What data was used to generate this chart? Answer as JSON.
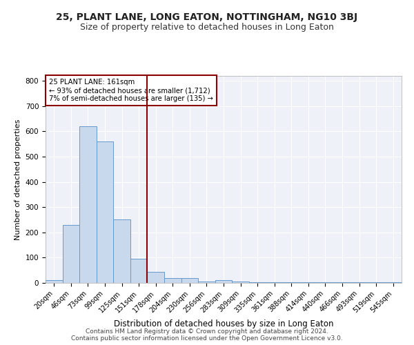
{
  "title": "25, PLANT LANE, LONG EATON, NOTTINGHAM, NG10 3BJ",
  "subtitle": "Size of property relative to detached houses in Long Eaton",
  "xlabel": "Distribution of detached houses by size in Long Eaton",
  "ylabel": "Number of detached properties",
  "footer_line1": "Contains HM Land Registry data © Crown copyright and database right 2024.",
  "footer_line2": "Contains public sector information licensed under the Open Government Licence v3.0.",
  "bin_labels": [
    "20sqm",
    "46sqm",
    "73sqm",
    "99sqm",
    "125sqm",
    "151sqm",
    "178sqm",
    "204sqm",
    "230sqm",
    "256sqm",
    "283sqm",
    "309sqm",
    "335sqm",
    "361sqm",
    "388sqm",
    "414sqm",
    "440sqm",
    "466sqm",
    "493sqm",
    "519sqm",
    "545sqm"
  ],
  "bar_values": [
    10,
    230,
    620,
    560,
    252,
    95,
    45,
    20,
    20,
    5,
    10,
    5,
    2,
    2,
    2,
    2,
    2,
    2,
    2,
    2,
    2
  ],
  "bar_color": "#c8d9ee",
  "bar_edge_color": "#6699cc",
  "vline_x": 5.5,
  "vline_color": "#8b0000",
  "annotation_text": "25 PLANT LANE: 161sqm\n← 93% of detached houses are smaller (1,712)\n7% of semi-detached houses are larger (135) →",
  "annotation_box_color": "#8b0000",
  "ylim": [
    0,
    820
  ],
  "yticks": [
    0,
    100,
    200,
    300,
    400,
    500,
    600,
    700,
    800
  ],
  "background_color": "#eef2f8",
  "plot_bg_color": "#eef2f8",
  "grid_color": "#ffffff",
  "title_fontsize": 10,
  "subtitle_fontsize": 9,
  "xlabel_fontsize": 8.5,
  "ylabel_fontsize": 8,
  "tick_fontsize": 7,
  "footer_fontsize": 6.5
}
